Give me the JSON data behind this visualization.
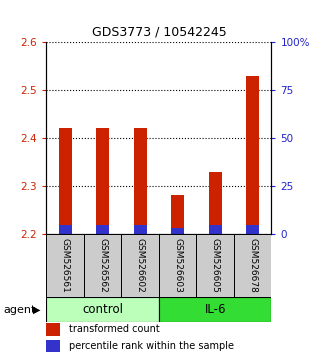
{
  "title": "GDS3773 / 10542245",
  "samples": [
    "GSM526561",
    "GSM526562",
    "GSM526602",
    "GSM526603",
    "GSM526605",
    "GSM526678"
  ],
  "groups": [
    "control",
    "control",
    "control",
    "IL-6",
    "IL-6",
    "IL-6"
  ],
  "red_values": [
    2.421,
    2.421,
    2.421,
    2.28,
    2.33,
    2.53
  ],
  "blue_heights": [
    0.018,
    0.018,
    0.018,
    0.012,
    0.018,
    0.018
  ],
  "bar_base": 2.2,
  "ylim_left": [
    2.2,
    2.6
  ],
  "ylim_right": [
    0,
    100
  ],
  "yticks_left": [
    2.2,
    2.3,
    2.4,
    2.5,
    2.6
  ],
  "yticks_right": [
    0,
    25,
    50,
    75,
    100
  ],
  "ytick_labels_right": [
    "0",
    "25",
    "50",
    "75",
    "100%"
  ],
  "red_color": "#cc2200",
  "blue_color": "#3333cc",
  "control_color": "#bbffbb",
  "il6_color": "#33dd33",
  "sample_box_color": "#cccccc",
  "agent_label": "agent",
  "group_labels": [
    "control",
    "IL-6"
  ],
  "legend_red": "transformed count",
  "legend_blue": "percentile rank within the sample",
  "bar_width": 0.35
}
